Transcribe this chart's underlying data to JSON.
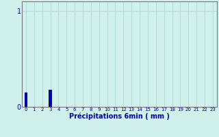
{
  "title": "",
  "xlabel": "Précipitations 6min ( mm )",
  "categories": [
    0,
    1,
    2,
    3,
    4,
    5,
    6,
    7,
    8,
    9,
    10,
    11,
    12,
    13,
    14,
    15,
    16,
    17,
    18,
    19,
    20,
    21,
    22,
    23
  ],
  "values": [
    0.15,
    0.0,
    0.0,
    0.18,
    0.0,
    0.0,
    0.0,
    0.0,
    0.0,
    0.0,
    0.0,
    0.0,
    0.0,
    0.0,
    0.0,
    0.0,
    0.0,
    0.0,
    0.0,
    0.0,
    0.0,
    0.0,
    0.0,
    0.0
  ],
  "bar_color": "#0000bb",
  "background_color": "#cff0eb",
  "grid_color": "#aad8d0",
  "axis_color": "#777777",
  "label_color": "#0000aa",
  "ylim": [
    0,
    1.1
  ],
  "yticks": [
    0,
    1
  ],
  "xlim": [
    -0.5,
    23.5
  ],
  "xlabel_fontsize": 7,
  "ytick_fontsize": 7,
  "xtick_fontsize": 5
}
